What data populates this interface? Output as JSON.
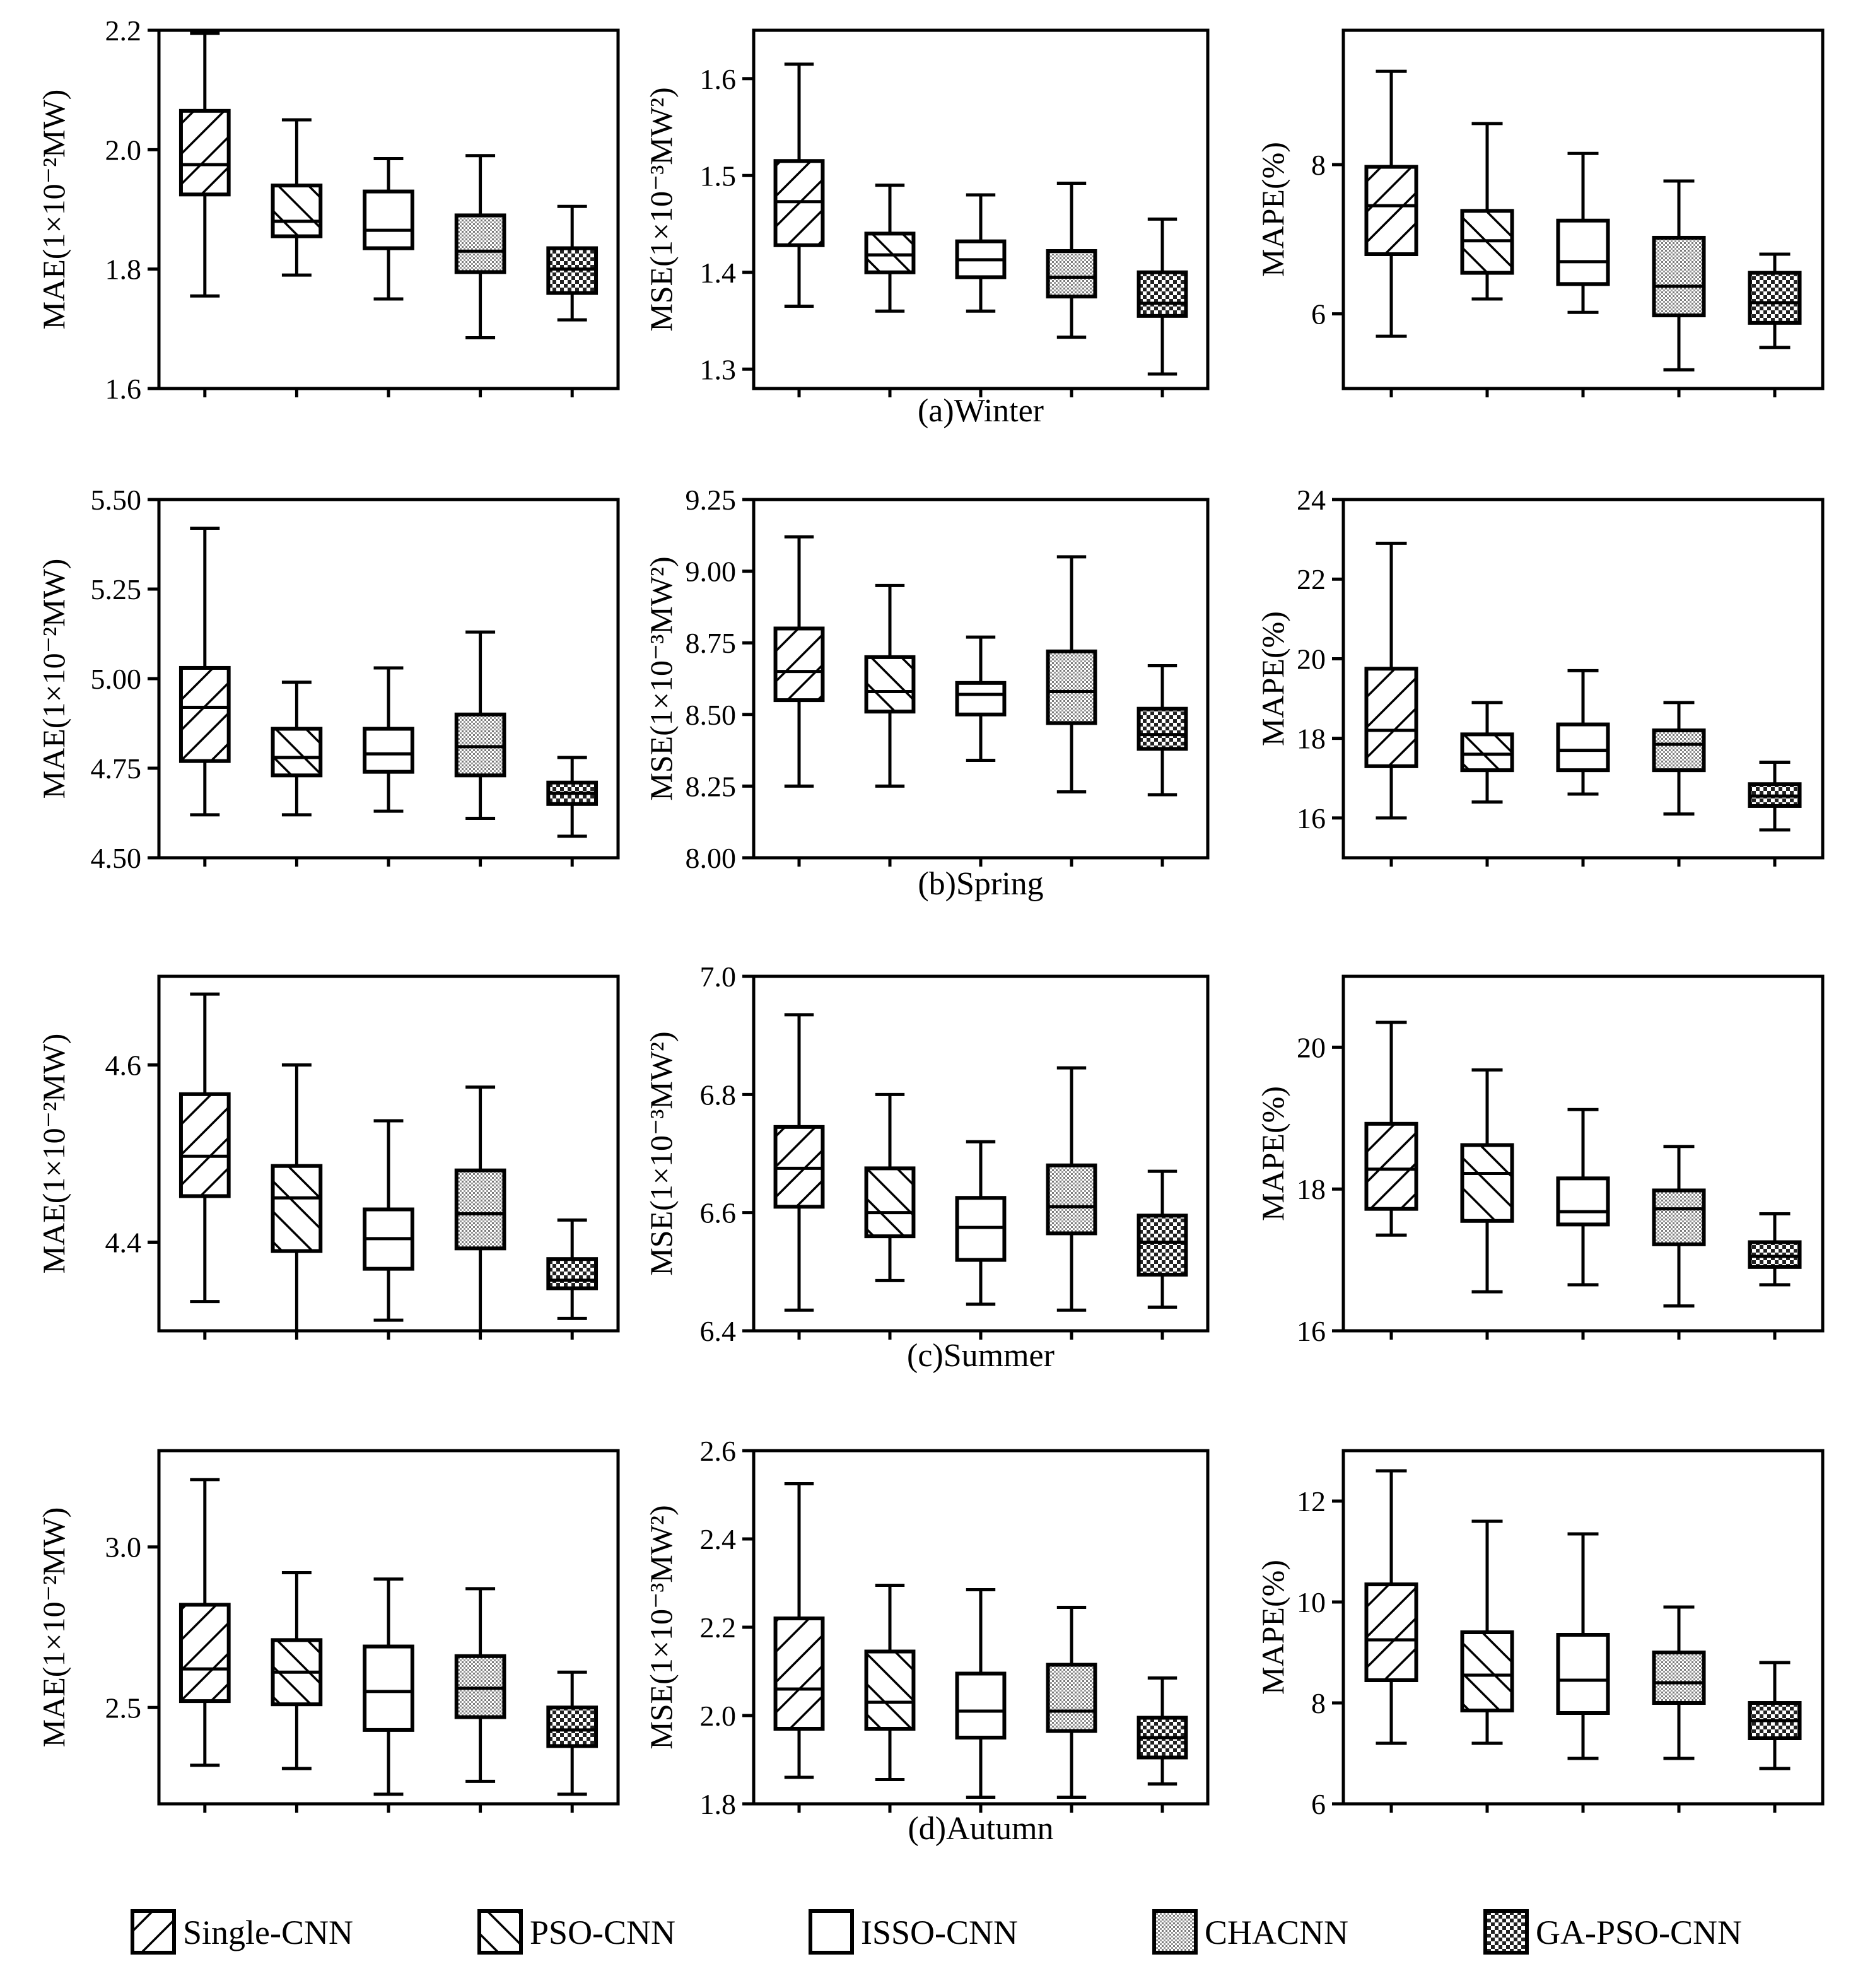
{
  "legend": [
    {
      "label": "Single-CNN",
      "pattern": "diag-fwd"
    },
    {
      "label": "PSO-CNN",
      "pattern": "diag-back"
    },
    {
      "label": "ISSO-CNN",
      "pattern": "none"
    },
    {
      "label": "CHACNN",
      "pattern": "dots"
    },
    {
      "label": "GA-PSO-CNN",
      "pattern": "checker"
    }
  ],
  "colors": {
    "stroke": "#000000",
    "fill": "#ffffff",
    "dots_fill": "#c8c8c8"
  },
  "chart_data": [
    {
      "type": "box",
      "season_caption": "",
      "ylabel": "MAE(1×10⁻²MW)",
      "ylim": [
        1.6,
        2.2
      ],
      "ticks": [
        1.6,
        1.8,
        2.0,
        2.2
      ],
      "tick_labels": [
        "1.6",
        "1.8",
        "2.0",
        "2.2"
      ],
      "boxes": [
        {
          "name": "Single-CNN",
          "min": 1.755,
          "q1": 1.925,
          "median": 1.975,
          "q3": 2.065,
          "max": 2.195
        },
        {
          "name": "PSO-CNN",
          "min": 1.79,
          "q1": 1.855,
          "median": 1.88,
          "q3": 1.94,
          "max": 2.05
        },
        {
          "name": "ISSO-CNN",
          "min": 1.75,
          "q1": 1.835,
          "median": 1.865,
          "q3": 1.93,
          "max": 1.985
        },
        {
          "name": "CHACNN",
          "min": 1.685,
          "q1": 1.795,
          "median": 1.83,
          "q3": 1.89,
          "max": 1.99
        },
        {
          "name": "GA-PSO-CNN",
          "min": 1.715,
          "q1": 1.76,
          "median": 1.8,
          "q3": 1.835,
          "max": 1.905
        }
      ]
    },
    {
      "type": "box",
      "season_caption": "(a)Winter",
      "ylabel": "MSE(1×10⁻³MW²)",
      "ylim": [
        1.28,
        1.65
      ],
      "ticks": [
        1.3,
        1.4,
        1.5,
        1.6
      ],
      "tick_labels": [
        "1.3",
        "1.4",
        "1.5",
        "1.6"
      ],
      "boxes": [
        {
          "name": "Single-CNN",
          "min": 1.365,
          "q1": 1.428,
          "median": 1.473,
          "q3": 1.515,
          "max": 1.615
        },
        {
          "name": "PSO-CNN",
          "min": 1.36,
          "q1": 1.4,
          "median": 1.418,
          "q3": 1.44,
          "max": 1.49
        },
        {
          "name": "ISSO-CNN",
          "min": 1.36,
          "q1": 1.395,
          "median": 1.413,
          "q3": 1.432,
          "max": 1.48
        },
        {
          "name": "CHACNN",
          "min": 1.333,
          "q1": 1.375,
          "median": 1.395,
          "q3": 1.422,
          "max": 1.492
        },
        {
          "name": "GA-PSO-CNN",
          "min": 1.295,
          "q1": 1.355,
          "median": 1.368,
          "q3": 1.4,
          "max": 1.455
        }
      ]
    },
    {
      "type": "box",
      "season_caption": "",
      "ylabel": "MAPE(%)",
      "ylim": [
        5.0,
        9.8
      ],
      "ticks": [
        6,
        8
      ],
      "tick_labels": [
        "6",
        "8"
      ],
      "boxes": [
        {
          "name": "Single-CNN",
          "min": 5.7,
          "q1": 6.8,
          "median": 7.45,
          "q3": 7.97,
          "max": 9.25
        },
        {
          "name": "PSO-CNN",
          "min": 6.2,
          "q1": 6.55,
          "median": 6.98,
          "q3": 7.38,
          "max": 8.55
        },
        {
          "name": "ISSO-CNN",
          "min": 6.02,
          "q1": 6.4,
          "median": 6.7,
          "q3": 7.25,
          "max": 8.15
        },
        {
          "name": "CHACNN",
          "min": 5.25,
          "q1": 5.98,
          "median": 6.37,
          "q3": 7.02,
          "max": 7.78
        },
        {
          "name": "GA-PSO-CNN",
          "min": 5.55,
          "q1": 5.88,
          "median": 6.15,
          "q3": 6.55,
          "max": 6.8
        }
      ]
    },
    {
      "type": "box",
      "season_caption": "",
      "ylabel": "MAE(1×10⁻²MW)",
      "ylim": [
        4.5,
        5.5
      ],
      "ticks": [
        4.5,
        4.75,
        5.0,
        5.25,
        5.5
      ],
      "tick_labels": [
        "4.50",
        "4.75",
        "5.00",
        "5.25",
        "5.50"
      ],
      "boxes": [
        {
          "name": "Single-CNN",
          "min": 4.62,
          "q1": 4.77,
          "median": 4.92,
          "q3": 5.03,
          "max": 5.42
        },
        {
          "name": "PSO-CNN",
          "min": 4.62,
          "q1": 4.73,
          "median": 4.78,
          "q3": 4.86,
          "max": 4.99
        },
        {
          "name": "ISSO-CNN",
          "min": 4.63,
          "q1": 4.74,
          "median": 4.79,
          "q3": 4.86,
          "max": 5.03
        },
        {
          "name": "CHACNN",
          "min": 4.61,
          "q1": 4.73,
          "median": 4.81,
          "q3": 4.9,
          "max": 5.13
        },
        {
          "name": "GA-PSO-CNN",
          "min": 4.56,
          "q1": 4.65,
          "median": 4.68,
          "q3": 4.71,
          "max": 4.78
        }
      ]
    },
    {
      "type": "box",
      "season_caption": "(b)Spring",
      "ylabel": "MSE(1×10⁻³MW²)",
      "ylim": [
        8.0,
        9.25
      ],
      "ticks": [
        8.0,
        8.25,
        8.5,
        8.75,
        9.0,
        9.25
      ],
      "tick_labels": [
        "8.00",
        "8.25",
        "8.50",
        "8.75",
        "9.00",
        "9.25"
      ],
      "boxes": [
        {
          "name": "Single-CNN",
          "min": 8.25,
          "q1": 8.55,
          "median": 8.65,
          "q3": 8.8,
          "max": 9.12
        },
        {
          "name": "PSO-CNN",
          "min": 8.25,
          "q1": 8.51,
          "median": 8.58,
          "q3": 8.7,
          "max": 8.95
        },
        {
          "name": "ISSO-CNN",
          "min": 8.34,
          "q1": 8.5,
          "median": 8.57,
          "q3": 8.61,
          "max": 8.77
        },
        {
          "name": "CHACNN",
          "min": 8.23,
          "q1": 8.47,
          "median": 8.58,
          "q3": 8.72,
          "max": 9.05
        },
        {
          "name": "GA-PSO-CNN",
          "min": 8.22,
          "q1": 8.38,
          "median": 8.43,
          "q3": 8.52,
          "max": 8.67
        }
      ]
    },
    {
      "type": "box",
      "season_caption": "",
      "ylabel": "MAPE(%)",
      "ylim": [
        15.0,
        24.0
      ],
      "ticks": [
        16,
        18,
        20,
        22,
        24
      ],
      "tick_labels": [
        "16",
        "18",
        "20",
        "22",
        "24"
      ],
      "boxes": [
        {
          "name": "Single-CNN",
          "min": 16.0,
          "q1": 17.3,
          "median": 18.2,
          "q3": 19.75,
          "max": 22.9
        },
        {
          "name": "PSO-CNN",
          "min": 16.4,
          "q1": 17.2,
          "median": 17.6,
          "q3": 18.1,
          "max": 18.9
        },
        {
          "name": "ISSO-CNN",
          "min": 16.6,
          "q1": 17.2,
          "median": 17.7,
          "q3": 18.35,
          "max": 19.7
        },
        {
          "name": "CHACNN",
          "min": 16.1,
          "q1": 17.2,
          "median": 17.85,
          "q3": 18.2,
          "max": 18.9
        },
        {
          "name": "GA-PSO-CNN",
          "min": 15.7,
          "q1": 16.3,
          "median": 16.55,
          "q3": 16.85,
          "max": 17.4
        }
      ]
    },
    {
      "type": "box",
      "season_caption": "",
      "ylabel": "MAE(1×10⁻²MW)",
      "ylim": [
        4.3,
        4.7
      ],
      "ticks": [
        4.4,
        4.6
      ],
      "tick_labels": [
        "4.4",
        "4.6"
      ],
      "boxes": [
        {
          "name": "Single-CNN",
          "min": 4.333,
          "q1": 4.452,
          "median": 4.497,
          "q3": 4.567,
          "max": 4.68
        },
        {
          "name": "PSO-CNN",
          "min": 4.3,
          "q1": 4.39,
          "median": 4.45,
          "q3": 4.486,
          "max": 4.6
        },
        {
          "name": "ISSO-CNN",
          "min": 4.312,
          "q1": 4.37,
          "median": 4.404,
          "q3": 4.437,
          "max": 4.537
        },
        {
          "name": "CHACNN",
          "min": 4.3,
          "q1": 4.393,
          "median": 4.432,
          "q3": 4.481,
          "max": 4.575
        },
        {
          "name": "GA-PSO-CNN",
          "min": 4.314,
          "q1": 4.348,
          "median": 4.357,
          "q3": 4.381,
          "max": 4.425
        }
      ]
    },
    {
      "type": "box",
      "season_caption": "(c)Summer",
      "ylabel": "MSE(1×10⁻³MW²)",
      "ylim": [
        6.4,
        7.0
      ],
      "ticks": [
        6.4,
        6.6,
        6.8,
        7.0
      ],
      "tick_labels": [
        "6.4",
        "6.6",
        "6.8",
        "7.0"
      ],
      "boxes": [
        {
          "name": "Single-CNN",
          "min": 6.435,
          "q1": 6.61,
          "median": 6.675,
          "q3": 6.745,
          "max": 6.935
        },
        {
          "name": "PSO-CNN",
          "min": 6.485,
          "q1": 6.56,
          "median": 6.6,
          "q3": 6.675,
          "max": 6.8
        },
        {
          "name": "ISSO-CNN",
          "min": 6.445,
          "q1": 6.52,
          "median": 6.575,
          "q3": 6.625,
          "max": 6.72
        },
        {
          "name": "CHACNN",
          "min": 6.435,
          "q1": 6.565,
          "median": 6.61,
          "q3": 6.68,
          "max": 6.845
        },
        {
          "name": "GA-PSO-CNN",
          "min": 6.44,
          "q1": 6.495,
          "median": 6.55,
          "q3": 6.595,
          "max": 6.67
        }
      ]
    },
    {
      "type": "box",
      "season_caption": "",
      "ylabel": "MAPE(%)",
      "ylim": [
        16.0,
        21.0
      ],
      "ticks": [
        16,
        18,
        20
      ],
      "tick_labels": [
        "16",
        "18",
        "20"
      ],
      "boxes": [
        {
          "name": "Single-CNN",
          "min": 17.35,
          "q1": 17.72,
          "median": 18.28,
          "q3": 18.92,
          "max": 20.35
        },
        {
          "name": "PSO-CNN",
          "min": 16.55,
          "q1": 17.55,
          "median": 18.22,
          "q3": 18.62,
          "max": 19.68
        },
        {
          "name": "ISSO-CNN",
          "min": 16.65,
          "q1": 17.5,
          "median": 17.68,
          "q3": 18.15,
          "max": 19.12
        },
        {
          "name": "CHACNN",
          "min": 16.35,
          "q1": 17.22,
          "median": 17.72,
          "q3": 17.98,
          "max": 18.6
        },
        {
          "name": "GA-PSO-CNN",
          "min": 16.65,
          "q1": 16.9,
          "median": 17.05,
          "q3": 17.25,
          "max": 17.65
        }
      ]
    },
    {
      "type": "box",
      "season_caption": "",
      "ylabel": "MAE(1×10⁻²MW)",
      "ylim": [
        2.2,
        3.3
      ],
      "ticks": [
        2.5,
        3.0
      ],
      "tick_labels": [
        "2.5",
        "3.0"
      ],
      "boxes": [
        {
          "name": "Single-CNN",
          "min": 2.32,
          "q1": 2.52,
          "median": 2.62,
          "q3": 2.82,
          "max": 3.21
        },
        {
          "name": "PSO-CNN",
          "min": 2.31,
          "q1": 2.51,
          "median": 2.61,
          "q3": 2.71,
          "max": 2.92
        },
        {
          "name": "ISSO-CNN",
          "min": 2.23,
          "q1": 2.43,
          "median": 2.55,
          "q3": 2.69,
          "max": 2.9
        },
        {
          "name": "CHACNN",
          "min": 2.27,
          "q1": 2.47,
          "median": 2.56,
          "q3": 2.66,
          "max": 2.87
        },
        {
          "name": "GA-PSO-CNN",
          "min": 2.23,
          "q1": 2.38,
          "median": 2.43,
          "q3": 2.5,
          "max": 2.61
        }
      ]
    },
    {
      "type": "box",
      "season_caption": "(d)Autumn",
      "ylabel": "MSE(1×10⁻³MW²)",
      "ylim": [
        1.8,
        2.6
      ],
      "ticks": [
        1.8,
        2.0,
        2.2,
        2.4,
        2.6
      ],
      "tick_labels": [
        "1.8",
        "2.0",
        "2.2",
        "2.4",
        "2.6"
      ],
      "boxes": [
        {
          "name": "Single-CNN",
          "min": 1.86,
          "q1": 1.97,
          "median": 2.06,
          "q3": 2.22,
          "max": 2.525
        },
        {
          "name": "PSO-CNN",
          "min": 1.855,
          "q1": 1.97,
          "median": 2.03,
          "q3": 2.145,
          "max": 2.295
        },
        {
          "name": "ISSO-CNN",
          "min": 1.815,
          "q1": 1.95,
          "median": 2.01,
          "q3": 2.095,
          "max": 2.285
        },
        {
          "name": "CHACNN",
          "min": 1.815,
          "q1": 1.965,
          "median": 2.01,
          "q3": 2.115,
          "max": 2.245
        },
        {
          "name": "GA-PSO-CNN",
          "min": 1.845,
          "q1": 1.905,
          "median": 1.95,
          "q3": 1.995,
          "max": 2.085
        }
      ]
    },
    {
      "type": "box",
      "season_caption": "",
      "ylabel": "MAPE(%)",
      "ylim": [
        6.0,
        13.0
      ],
      "ticks": [
        6,
        8,
        10,
        12
      ],
      "tick_labels": [
        "6",
        "8",
        "10",
        "12"
      ],
      "boxes": [
        {
          "name": "Single-CNN",
          "min": 7.2,
          "q1": 8.45,
          "median": 9.25,
          "q3": 10.35,
          "max": 12.6
        },
        {
          "name": "PSO-CNN",
          "min": 7.2,
          "q1": 7.85,
          "median": 8.55,
          "q3": 9.4,
          "max": 11.6
        },
        {
          "name": "ISSO-CNN",
          "min": 6.9,
          "q1": 7.8,
          "median": 8.45,
          "q3": 9.35,
          "max": 11.35
        },
        {
          "name": "CHACNN",
          "min": 6.9,
          "q1": 8.0,
          "median": 8.4,
          "q3": 9.0,
          "max": 9.9
        },
        {
          "name": "GA-PSO-CNN",
          "min": 6.7,
          "q1": 7.3,
          "median": 7.65,
          "q3": 8.0,
          "max": 8.8
        }
      ]
    }
  ]
}
